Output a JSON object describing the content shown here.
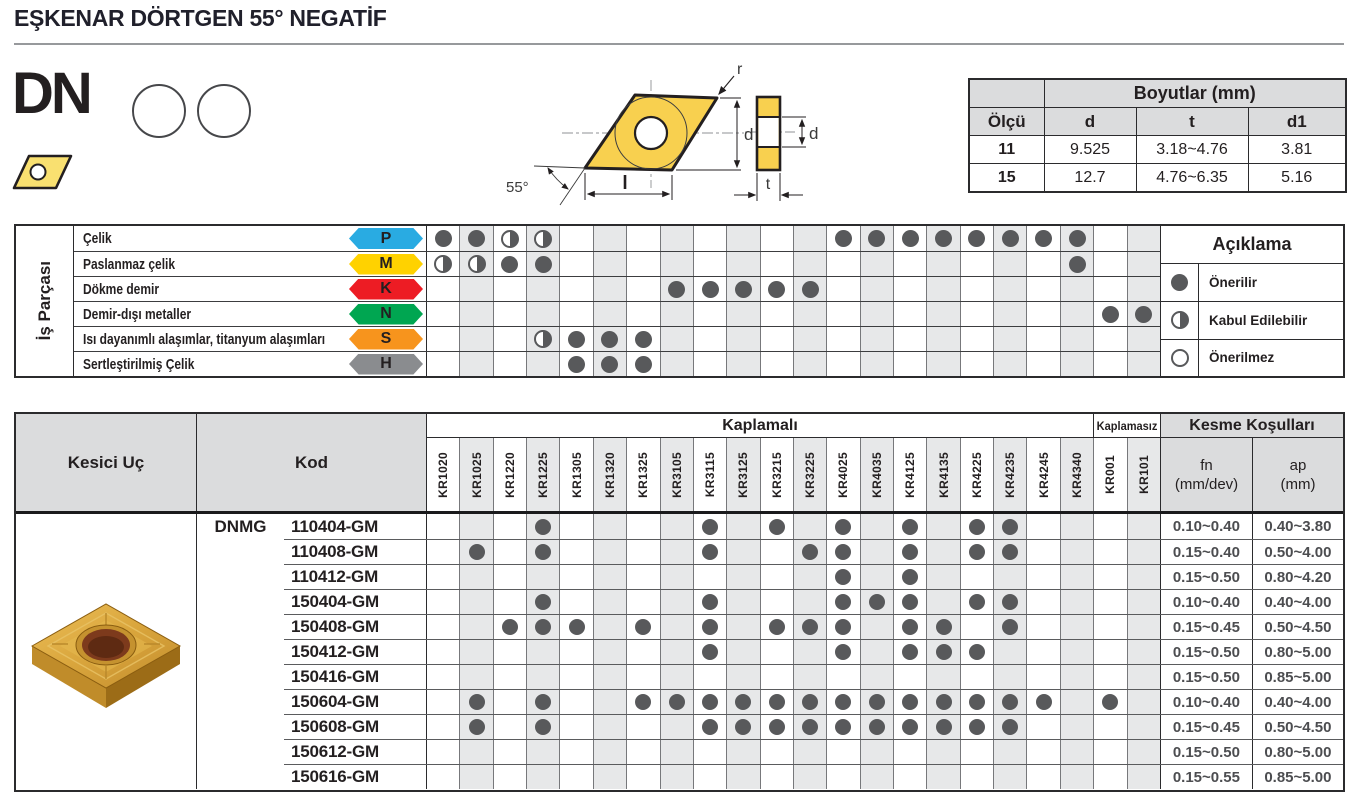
{
  "colors": {
    "dot": "#58595b",
    "shade": "#e7e8e9",
    "header_bg": "#dbdcdd",
    "grid_line": "#77787b",
    "dark_line": "#2b2b2d",
    "value_text": "#4c4d50",
    "title_rule": "#97999c",
    "drawing_fill": "#f8d04f",
    "icon_fill": "#f9e070"
  },
  "header": {
    "title": "EŞKENAR DÖRTGEN 55° NEGATİF",
    "series_code": "DN"
  },
  "drawing": {
    "corner_radius_label": "r",
    "height_label": "d",
    "length_label": "l",
    "angle_label": "55°",
    "hole_label": "d",
    "thickness_label": "t"
  },
  "size_table": {
    "title": "Boyutlar (mm)",
    "col_headers": [
      "Ölçü",
      "d",
      "t",
      "d1"
    ],
    "rows": [
      {
        "olcu": "11",
        "d": "9.525",
        "t": "3.18~4.76",
        "d1": "3.81"
      },
      {
        "olcu": "15",
        "d": "12.7",
        "t": "4.76~6.35",
        "d1": "5.16"
      }
    ]
  },
  "workpiece_table": {
    "group_label": "İş Parçası",
    "materials": [
      {
        "name": "Çelik",
        "letter": "P",
        "color": "#29abe2",
        "ratings": {
          "KR1020": "full",
          "KR1025": "full",
          "KR1220": "half",
          "KR1225": "half",
          "KR4025": "full",
          "KR4035": "full",
          "KR4125": "full",
          "KR4135": "full",
          "KR4225": "full",
          "KR4235": "full",
          "KR4245": "full",
          "KR4340": "full"
        }
      },
      {
        "name": "Paslanmaz çelik",
        "letter": "M",
        "color": "#ffd200",
        "ratings": {
          "KR1020": "half",
          "KR1025": "half",
          "KR1220": "full",
          "KR1225": "full",
          "KR4340": "full"
        }
      },
      {
        "name": "Dökme demir",
        "letter": "K",
        "color": "#ed1c24",
        "ratings": {
          "KR3105": "full",
          "KR3115": "full",
          "KR3125": "full",
          "KR3215": "full",
          "KR3225": "full"
        }
      },
      {
        "name": "Demir-dışı metaller",
        "letter": "N",
        "color": "#00a651",
        "ratings": {
          "KR001": "full",
          "KR101": "full"
        }
      },
      {
        "name": "Isı dayanımlı alaşımlar, titanyum alaşımları",
        "letter": "S",
        "color": "#f7941d",
        "ratings": {
          "KR1225": "half",
          "KR1305": "full",
          "KR1320": "full",
          "KR1325": "full"
        }
      },
      {
        "name": "Sertleştirilmiş Çelik",
        "letter": "H",
        "color": "#8a8c8f",
        "ratings": {
          "KR1305": "full",
          "KR1320": "full",
          "KR1325": "full"
        }
      }
    ],
    "legend": {
      "title": "Açıklama",
      "items": [
        {
          "symbol": "full",
          "label": "Önerilir"
        },
        {
          "symbol": "half",
          "label": "Kabul Edilebilir"
        },
        {
          "symbol": "empty",
          "label": "Önerilmez"
        }
      ]
    }
  },
  "catalog_table": {
    "headers": {
      "insert": "Kesici Uç",
      "code": "Kod",
      "coated": "Kaplamalı",
      "uncoated": "Kaplamasız",
      "cutting": "Kesme Koşulları",
      "fn_label": "fn",
      "fn_unit": "(mm/dev)",
      "ap_label": "ap",
      "ap_unit": "(mm)"
    },
    "coated_grades": [
      "KR1020",
      "KR1025",
      "KR1220",
      "KR1225",
      "KR1305",
      "KR1320",
      "KR1325",
      "KR3105",
      "KR3115",
      "KR3125",
      "KR3215",
      "KR3225",
      "KR4025",
      "KR4035",
      "KR4125",
      "KR4135",
      "KR4225",
      "KR4235",
      "KR4245",
      "KR4340"
    ],
    "uncoated_grades": [
      "KR001",
      "KR101"
    ],
    "code_prefix": "DNMG",
    "rows": [
      {
        "code": "110404-GM",
        "grades": [
          "KR1225",
          "KR3115",
          "KR3215",
          "KR4025",
          "KR4125",
          "KR4225",
          "KR4235"
        ],
        "fn": "0.10~0.40",
        "ap": "0.40~3.80"
      },
      {
        "code": "110408-GM",
        "grades": [
          "KR1025",
          "KR1225",
          "KR3115",
          "KR3225",
          "KR4025",
          "KR4125",
          "KR4225",
          "KR4235"
        ],
        "fn": "0.15~0.40",
        "ap": "0.50~4.00"
      },
      {
        "code": "110412-GM",
        "grades": [
          "KR4025",
          "KR4125"
        ],
        "fn": "0.15~0.50",
        "ap": "0.80~4.20"
      },
      {
        "code": "150404-GM",
        "grades": [
          "KR1225",
          "KR3115",
          "KR4025",
          "KR4035",
          "KR4125",
          "KR4225",
          "KR4235"
        ],
        "fn": "0.10~0.40",
        "ap": "0.40~4.00"
      },
      {
        "code": "150408-GM",
        "grades": [
          "KR1220",
          "KR1225",
          "KR1305",
          "KR1325",
          "KR3115",
          "KR3215",
          "KR3225",
          "KR4025",
          "KR4125",
          "KR4135",
          "KR4235"
        ],
        "fn": "0.15~0.45",
        "ap": "0.50~4.50"
      },
      {
        "code": "150412-GM",
        "grades": [
          "KR3115",
          "KR4025",
          "KR4125",
          "KR4135",
          "KR4225"
        ],
        "fn": "0.15~0.50",
        "ap": "0.80~5.00"
      },
      {
        "code": "150416-GM",
        "grades": [],
        "fn": "0.15~0.50",
        "ap": "0.85~5.00"
      },
      {
        "code": "150604-GM",
        "grades": [
          "KR1025",
          "KR1225",
          "KR1325",
          "KR3105",
          "KR3115",
          "KR3125",
          "KR3215",
          "KR3225",
          "KR4025",
          "KR4035",
          "KR4125",
          "KR4135",
          "KR4225",
          "KR4235",
          "KR4245",
          "KR001"
        ],
        "fn": "0.10~0.40",
        "ap": "0.40~4.00"
      },
      {
        "code": "150608-GM",
        "grades": [
          "KR1025",
          "KR1225",
          "KR3115",
          "KR3125",
          "KR3215",
          "KR3225",
          "KR4025",
          "KR4035",
          "KR4125",
          "KR4135",
          "KR4225",
          "KR4235"
        ],
        "fn": "0.15~0.45",
        "ap": "0.50~4.50"
      },
      {
        "code": "150612-GM",
        "grades": [],
        "fn": "0.15~0.50",
        "ap": "0.80~5.00"
      },
      {
        "code": "150616-GM",
        "grades": [],
        "fn": "0.15~0.55",
        "ap": "0.85~5.00"
      }
    ]
  }
}
